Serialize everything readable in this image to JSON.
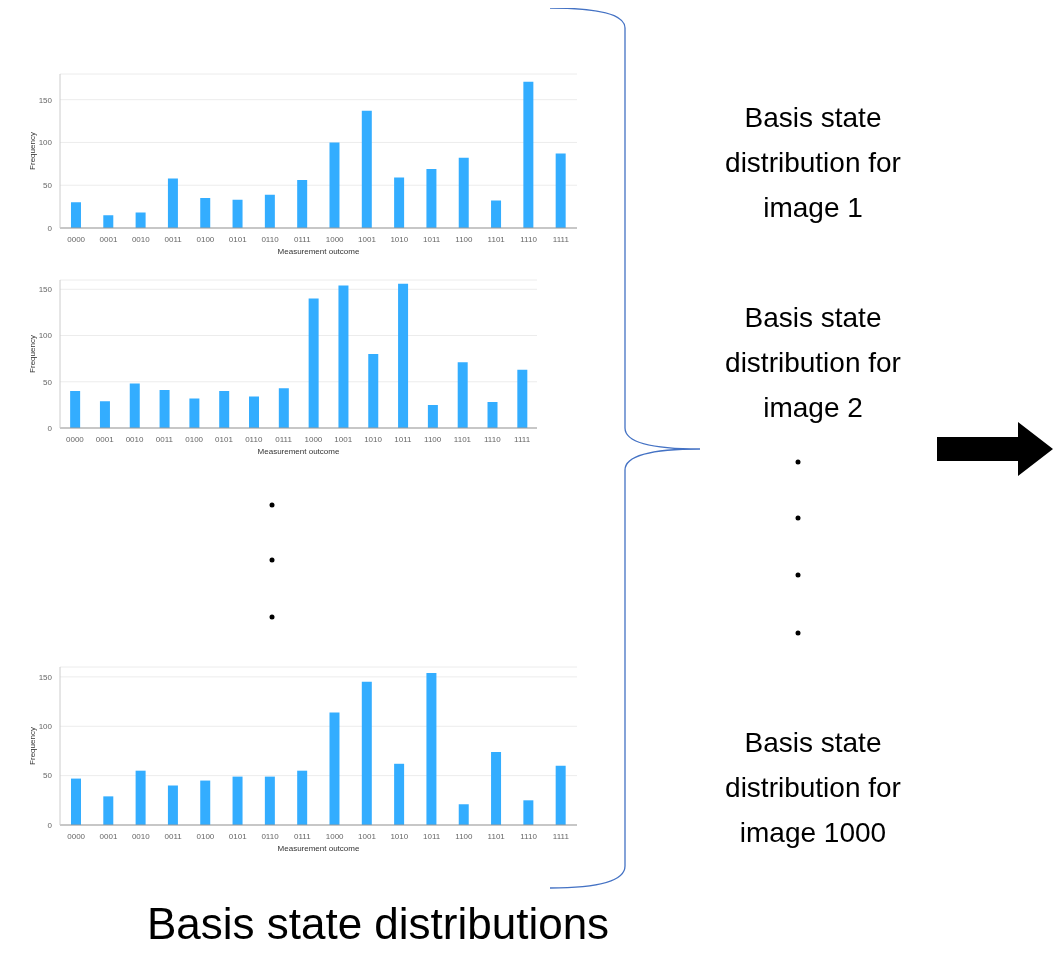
{
  "chart_data": [
    {
      "type": "bar",
      "xlabel": "Measurement outcome",
      "ylabel": "Frequency",
      "categories": [
        "0000",
        "0001",
        "0010",
        "0011",
        "0100",
        "0101",
        "0110",
        "0111",
        "1000",
        "1001",
        "1010",
        "1011",
        "1100",
        "1101",
        "1110",
        "1111"
      ],
      "values": [
        30,
        15,
        18,
        58,
        35,
        33,
        39,
        56,
        100,
        137,
        59,
        69,
        82,
        32,
        171,
        87
      ],
      "color": "#33adff",
      "ylim": [
        0,
        180
      ],
      "yticks": [
        0,
        50,
        100,
        150
      ],
      "grid": "y"
    },
    {
      "type": "bar",
      "xlabel": "Measurement outcome",
      "ylabel": "Frequency",
      "categories": [
        "0000",
        "0001",
        "0010",
        "0011",
        "0100",
        "0101",
        "0110",
        "0111",
        "1000",
        "1001",
        "1010",
        "1011",
        "1100",
        "1101",
        "1110",
        "1111"
      ],
      "values": [
        40,
        29,
        48,
        41,
        32,
        40,
        34,
        43,
        140,
        154,
        80,
        156,
        25,
        71,
        28,
        63
      ],
      "color": "#33adff",
      "ylim": [
        0,
        160
      ],
      "yticks": [
        0,
        50,
        100,
        150
      ],
      "grid": "y"
    },
    {
      "type": "bar",
      "xlabel": "Measurement outcome",
      "ylabel": "Frequency",
      "categories": [
        "0000",
        "0001",
        "0010",
        "0011",
        "0100",
        "0101",
        "0110",
        "0111",
        "1000",
        "1001",
        "1010",
        "1011",
        "1100",
        "1101",
        "1110",
        "1111"
      ],
      "values": [
        47,
        29,
        55,
        40,
        45,
        49,
        49,
        55,
        114,
        145,
        62,
        154,
        21,
        74,
        25,
        60
      ],
      "color": "#33adff",
      "ylim": [
        0,
        160
      ],
      "yticks": [
        0,
        50,
        100,
        150
      ],
      "grid": "y"
    },
    {
      "type": "other",
      "annotations": [
        "Basis state distribution for image 1",
        "Basis state distribution for image 2",
        "Basis state distribution for image 1000",
        "Basis state distributions"
      ]
    }
  ]
}
